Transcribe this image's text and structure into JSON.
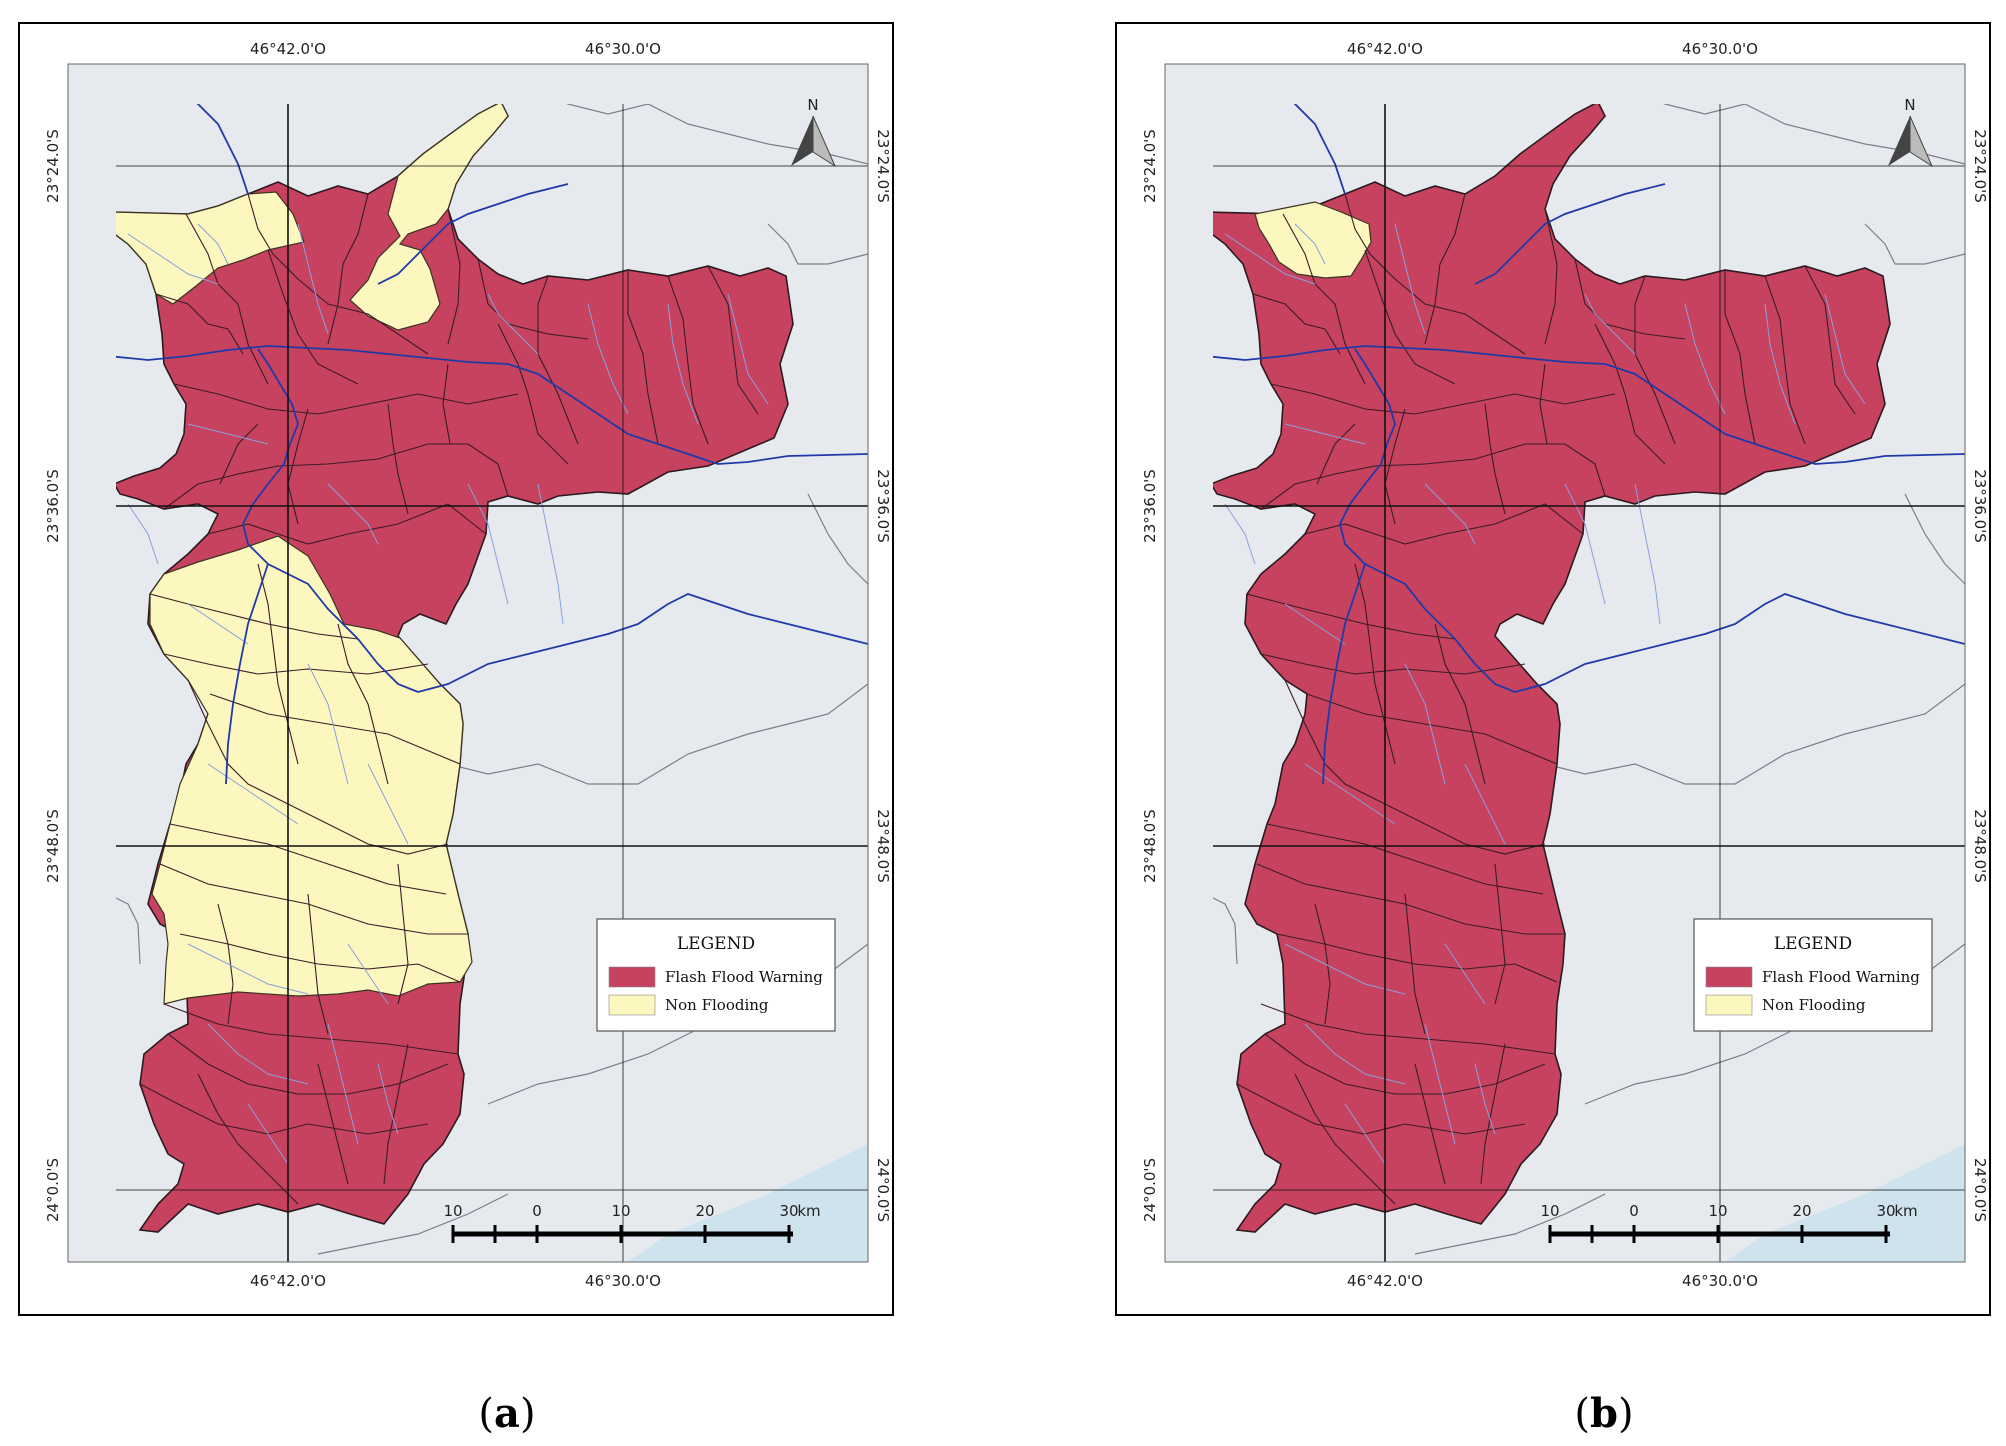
{
  "panels": [
    {
      "id": "a",
      "caption_letter": "a",
      "legend_title": "LEGEND",
      "legend_items": [
        {
          "label": "Flash Flood Warning",
          "color": "#c7425f"
        },
        {
          "label": "Non Flooding",
          "color": "#fbf7bf"
        }
      ],
      "north_label": "N",
      "top_longitudes": [
        "46°42.0'O",
        "46°30.0'O"
      ],
      "bottom_longitudes": [
        "46°42.0'O",
        "46°30.0'O"
      ],
      "latitudes": [
        "23°24.0'S",
        "23°36.0'S",
        "23°48.0'S",
        "24°0.0'S"
      ],
      "scale_labels": [
        "10",
        "0",
        "10",
        "20",
        "30"
      ],
      "scale_unit": "km",
      "non_flooding_zones": [
        "north-west headwaters",
        "north-central strip",
        "south-central basin"
      ]
    },
    {
      "id": "b",
      "caption_letter": "b",
      "legend_title": "LEGEND",
      "legend_items": [
        {
          "label": "Flash Flood Warning",
          "color": "#c7425f"
        },
        {
          "label": "Non Flooding",
          "color": "#fbf7bf"
        }
      ],
      "north_label": "N",
      "top_longitudes": [
        "46°42.0'O",
        "46°30.0'O"
      ],
      "bottom_longitudes": [
        "46°42.0'O",
        "46°30.0'O"
      ],
      "latitudes": [
        "23°24.0'S",
        "23°36.0'S",
        "23°48.0'S",
        "24°0.0'S"
      ],
      "scale_labels": [
        "10",
        "0",
        "10",
        "20",
        "30"
      ],
      "scale_unit": "km",
      "non_flooding_zones": [
        "small north-west headwater"
      ]
    }
  ],
  "colors": {
    "flood": "#c7425f",
    "non_flood": "#fbf7bf",
    "background": "#e6eaef",
    "river": "#1f3aa8",
    "sea": "#cfe3ef"
  }
}
